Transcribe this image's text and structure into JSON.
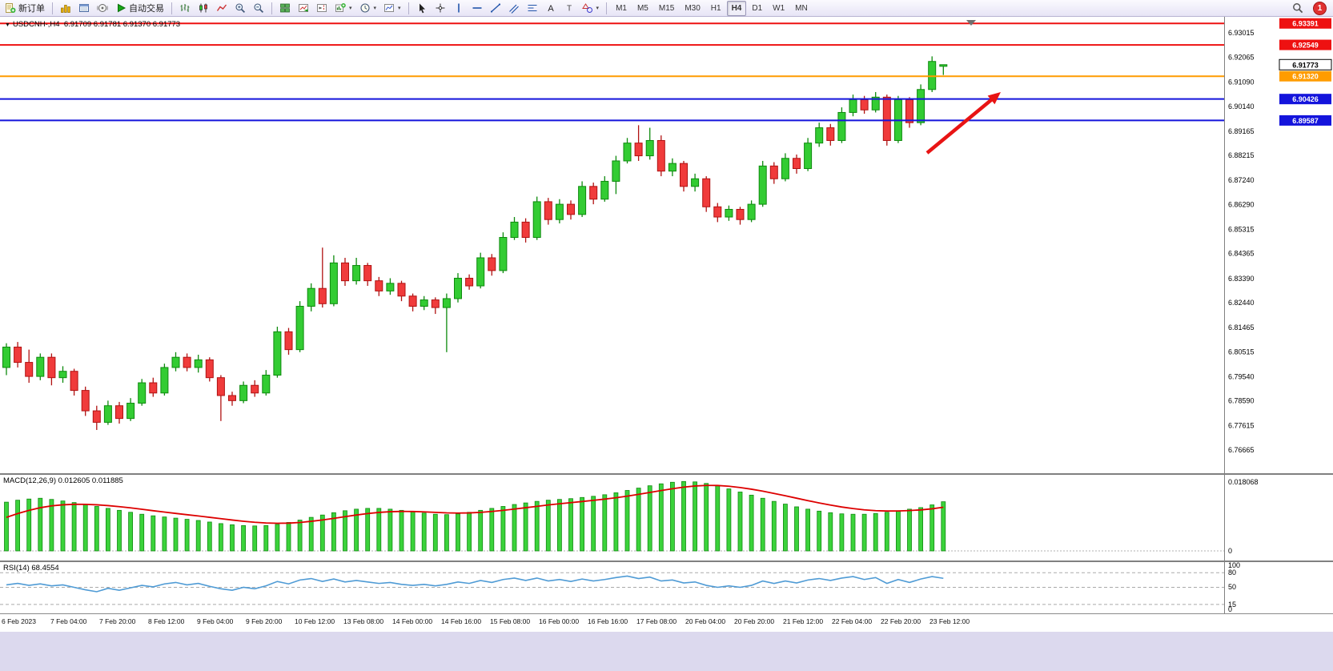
{
  "toolbar": {
    "new_order_label": "新订单",
    "autotrading_label": "自动交易",
    "timeframes": [
      "M1",
      "M5",
      "M15",
      "M30",
      "H1",
      "H4",
      "D1",
      "W1",
      "MN"
    ],
    "active_timeframe": "H4",
    "badge_count": "1"
  },
  "chart": {
    "title_symbol": "USDCNH-,H4",
    "title_ohlc": "6.91709 6.91781 6.91370 6.91773",
    "current_price_label": "6.91773",
    "price_axis_labels": [
      "6.93015",
      "6.92065",
      "6.91090",
      "6.90140",
      "6.89165",
      "6.88215",
      "6.87240",
      "6.86290",
      "6.85315",
      "6.84365",
      "6.83390",
      "6.82440",
      "6.81465",
      "6.80515",
      "6.79540",
      "6.78590",
      "6.77615",
      "6.76665"
    ],
    "hlines": [
      {
        "price": 6.93391,
        "label": "6.93391",
        "color": "#ee1111"
      },
      {
        "price": 6.92549,
        "label": "6.92549",
        "color": "#ee1111"
      },
      {
        "price": 6.9132,
        "label": "6.91320",
        "color": "#ff9c00"
      },
      {
        "price": 6.90426,
        "label": "6.90426",
        "color": "#1414dc"
      },
      {
        "price": 6.89587,
        "label": "6.89587",
        "color": "#1414dc"
      }
    ],
    "colors": {
      "up": "#33cc33",
      "up_border": "#0e8a0e",
      "down": "#f03b3b",
      "down_border": "#b01212",
      "signal": "#dd0000",
      "rsi": "#4f9bd5"
    },
    "arrow": {
      "from": [
        1158,
        170
      ],
      "to": [
        1250,
        94
      ],
      "color": "#e81414"
    }
  },
  "macd": {
    "label": "MACD(12,26,9) 0.012605 0.011885",
    "axis_labels": [
      "0.018068",
      "0"
    ]
  },
  "rsi": {
    "label": "RSI(14) 68.4554",
    "axis_labels": [
      "100",
      "80",
      "50",
      "15",
      "0"
    ],
    "levels": [
      80,
      50,
      15
    ]
  },
  "chart_data": [
    {
      "type": "candlestick",
      "symbol": "USDCNH",
      "timeframe": "H4",
      "ylim": [
        6.76665,
        6.9365
      ],
      "x_labels": [
        "6 Feb 2023",
        "7 Feb 04:00",
        "7 Feb 20:00",
        "8 Feb 12:00",
        "9 Feb 04:00",
        "9 Feb 20:00",
        "10 Feb 12:00",
        "13 Feb 08:00",
        "14 Feb 00:00",
        "14 Feb 16:00",
        "15 Feb 08:00",
        "16 Feb 00:00",
        "16 Feb 16:00",
        "17 Feb 08:00",
        "20 Feb 04:00",
        "20 Feb 20:00",
        "21 Feb 12:00",
        "22 Feb 04:00",
        "22 Feb 20:00",
        "23 Feb 12:00"
      ],
      "candles": [
        [
          6.799,
          6.8085,
          6.796,
          6.807
        ],
        [
          6.807,
          6.809,
          6.799,
          6.801
        ],
        [
          6.801,
          6.806,
          6.793,
          6.7955
        ],
        [
          6.7955,
          6.8045,
          6.794,
          6.803
        ],
        [
          6.803,
          6.8045,
          6.792,
          6.795
        ],
        [
          6.795,
          6.7995,
          6.793,
          6.7975
        ],
        [
          6.7975,
          6.7985,
          6.788,
          6.79
        ],
        [
          6.79,
          6.7915,
          6.78,
          6.782
        ],
        [
          6.782,
          6.784,
          6.7745,
          6.7775
        ],
        [
          6.7775,
          6.786,
          6.7765,
          6.784
        ],
        [
          6.784,
          6.7855,
          6.777,
          6.779
        ],
        [
          6.779,
          6.787,
          6.778,
          6.785
        ],
        [
          6.785,
          6.7945,
          6.784,
          6.793
        ],
        [
          6.793,
          6.795,
          6.7875,
          6.789
        ],
        [
          6.789,
          6.8005,
          6.788,
          6.799
        ],
        [
          6.799,
          6.805,
          6.7975,
          6.803
        ],
        [
          6.803,
          6.8045,
          6.7975,
          6.799
        ],
        [
          6.799,
          6.804,
          6.797,
          6.802
        ],
        [
          6.802,
          6.803,
          6.7935,
          6.795
        ],
        [
          6.795,
          6.796,
          6.778,
          6.788
        ],
        [
          6.788,
          6.7895,
          6.784,
          6.786
        ],
        [
          6.786,
          6.7935,
          6.785,
          6.792
        ],
        [
          6.792,
          6.794,
          6.7875,
          6.789
        ],
        [
          6.789,
          6.798,
          6.788,
          6.796
        ],
        [
          6.796,
          6.815,
          6.795,
          6.813
        ],
        [
          6.813,
          6.8145,
          6.804,
          6.806
        ],
        [
          6.806,
          6.825,
          6.805,
          6.823
        ],
        [
          6.823,
          6.832,
          6.821,
          6.83
        ],
        [
          6.83,
          6.846,
          6.8225,
          6.824
        ],
        [
          6.824,
          6.843,
          6.823,
          6.84
        ],
        [
          6.84,
          6.842,
          6.831,
          6.833
        ],
        [
          6.833,
          6.842,
          6.8315,
          6.839
        ],
        [
          6.839,
          6.84,
          6.831,
          6.833
        ],
        [
          6.833,
          6.8345,
          6.827,
          6.829
        ],
        [
          6.829,
          6.834,
          6.8275,
          6.832
        ],
        [
          6.832,
          6.833,
          6.825,
          6.827
        ],
        [
          6.827,
          6.828,
          6.821,
          6.823
        ],
        [
          6.823,
          6.827,
          6.8215,
          6.8255
        ],
        [
          6.8255,
          6.8265,
          6.82,
          6.8225
        ],
        [
          6.8225,
          6.828,
          6.805,
          6.826
        ],
        [
          6.826,
          6.836,
          6.8245,
          6.834
        ],
        [
          6.834,
          6.8355,
          6.8295,
          6.831
        ],
        [
          6.831,
          6.844,
          6.83,
          6.842
        ],
        [
          6.842,
          6.8435,
          6.835,
          6.837
        ],
        [
          6.837,
          6.852,
          6.836,
          6.85
        ],
        [
          6.85,
          6.858,
          6.849,
          6.856
        ],
        [
          6.856,
          6.8575,
          6.848,
          6.85
        ],
        [
          6.85,
          6.866,
          6.849,
          6.864
        ],
        [
          6.864,
          6.8655,
          6.855,
          6.857
        ],
        [
          6.857,
          6.865,
          6.8555,
          6.863
        ],
        [
          6.863,
          6.8645,
          6.857,
          6.859
        ],
        [
          6.859,
          6.872,
          6.858,
          6.87
        ],
        [
          6.87,
          6.8715,
          6.863,
          6.865
        ],
        [
          6.865,
          6.874,
          6.864,
          6.872
        ],
        [
          6.872,
          6.882,
          6.867,
          6.88
        ],
        [
          6.88,
          6.889,
          6.879,
          6.887
        ],
        [
          6.887,
          6.894,
          6.88,
          6.882
        ],
        [
          6.882,
          6.893,
          6.8805,
          6.888
        ],
        [
          6.888,
          6.89,
          6.874,
          6.876
        ],
        [
          6.876,
          6.881,
          6.874,
          6.879
        ],
        [
          6.879,
          6.88,
          6.868,
          6.87
        ],
        [
          6.87,
          6.875,
          6.868,
          6.873
        ],
        [
          6.873,
          6.874,
          6.86,
          6.862
        ],
        [
          6.862,
          6.8635,
          6.856,
          6.858
        ],
        [
          6.858,
          6.8625,
          6.8565,
          6.861
        ],
        [
          6.861,
          6.862,
          6.855,
          6.857
        ],
        [
          6.857,
          6.8645,
          6.856,
          6.863
        ],
        [
          6.863,
          6.88,
          6.862,
          6.878
        ],
        [
          6.878,
          6.8795,
          6.871,
          6.873
        ],
        [
          6.873,
          6.883,
          6.872,
          6.881
        ],
        [
          6.881,
          6.8825,
          6.875,
          6.877
        ],
        [
          6.877,
          6.889,
          6.876,
          6.887
        ],
        [
          6.887,
          6.895,
          6.8855,
          6.893
        ],
        [
          6.893,
          6.8945,
          6.886,
          6.888
        ],
        [
          6.888,
          6.901,
          6.887,
          6.899
        ],
        [
          6.899,
          6.906,
          6.8975,
          6.904
        ],
        [
          6.904,
          6.9055,
          6.8985,
          6.9
        ],
        [
          6.9,
          6.907,
          6.899,
          6.905
        ],
        [
          6.905,
          6.906,
          6.886,
          6.888
        ],
        [
          6.888,
          6.9055,
          6.887,
          6.904
        ],
        [
          6.904,
          6.905,
          6.893,
          6.895
        ],
        [
          6.895,
          6.91,
          6.894,
          6.908
        ],
        [
          6.908,
          6.921,
          6.907,
          6.919
        ],
        [
          6.91709,
          6.91781,
          6.9137,
          6.91773
        ]
      ]
    },
    {
      "type": "bar",
      "name": "MACD(12,26,9) histogram",
      "ylim": [
        0,
        0.018068
      ],
      "values": [
        0.0125,
        0.013,
        0.0133,
        0.0135,
        0.0132,
        0.0128,
        0.0124,
        0.0119,
        0.0114,
        0.0109,
        0.0104,
        0.0099,
        0.0094,
        0.009,
        0.0087,
        0.0084,
        0.0081,
        0.0078,
        0.0074,
        0.007,
        0.0067,
        0.0065,
        0.0064,
        0.0065,
        0.0068,
        0.0073,
        0.0079,
        0.0086,
        0.0092,
        0.0098,
        0.0103,
        0.0107,
        0.0109,
        0.0109,
        0.0107,
        0.0104,
        0.01,
        0.0097,
        0.0094,
        0.0093,
        0.0095,
        0.0099,
        0.0104,
        0.0109,
        0.0114,
        0.0119,
        0.0123,
        0.0127,
        0.013,
        0.0132,
        0.0134,
        0.0137,
        0.014,
        0.0144,
        0.0149,
        0.0155,
        0.0161,
        0.0167,
        0.0172,
        0.0176,
        0.0178,
        0.0177,
        0.0173,
        0.0167,
        0.0159,
        0.0151,
        0.0143,
        0.0135,
        0.0127,
        0.012,
        0.0113,
        0.0107,
        0.0102,
        0.0098,
        0.0095,
        0.0094,
        0.0094,
        0.0096,
        0.0099,
        0.0103,
        0.0107,
        0.0111,
        0.0118,
        0.012605
      ]
    },
    {
      "type": "line",
      "name": "RSI(14)",
      "ylim": [
        0,
        100
      ],
      "values": [
        55,
        58,
        54,
        57,
        53,
        55,
        50,
        45,
        41,
        48,
        44,
        49,
        54,
        51,
        57,
        60,
        55,
        58,
        52,
        47,
        44,
        50,
        47,
        53,
        62,
        57,
        65,
        68,
        62,
        67,
        61,
        64,
        61,
        58,
        60,
        56,
        54,
        56,
        53,
        56,
        61,
        58,
        64,
        60,
        66,
        69,
        64,
        69,
        63,
        66,
        62,
        67,
        63,
        66,
        70,
        73,
        68,
        71,
        63,
        65,
        59,
        61,
        54,
        50,
        53,
        50,
        54,
        63,
        58,
        63,
        59,
        65,
        68,
        64,
        69,
        72,
        66,
        70,
        58,
        66,
        60,
        67,
        72,
        68.4554
      ]
    }
  ]
}
